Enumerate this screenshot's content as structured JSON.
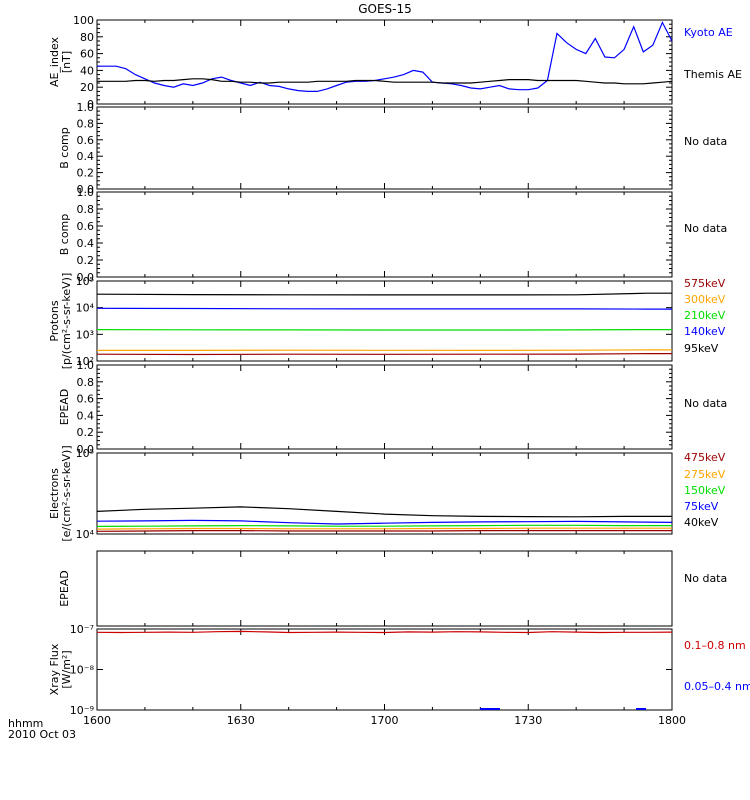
{
  "title": "GOES-15",
  "footer": {
    "time_label": "hhmm",
    "date_label": "2010 Oct 03",
    "x_ticks": [
      "1600",
      "1630",
      "1700",
      "1730",
      "1800"
    ]
  },
  "colors": {
    "black": "#000000",
    "blue": "#0000ff",
    "red": "#cc0000",
    "orange": "#ffa500",
    "green": "#00dd00",
    "darkred": "#990000"
  },
  "chart_data": [
    {
      "id": "ae",
      "type": "line",
      "ylabel": [
        "AE_index",
        "[nT]"
      ],
      "ylim": [
        0,
        100
      ],
      "yscale": "linear",
      "yticks": [
        "0",
        "20",
        "40",
        "60",
        "80",
        "100"
      ],
      "x_time": [
        0,
        2,
        4,
        6,
        8,
        10,
        12,
        14,
        16,
        18,
        20,
        22,
        24,
        26,
        28,
        30,
        32,
        34,
        36,
        38,
        40,
        42,
        44,
        46,
        48,
        50,
        52,
        54,
        56,
        58,
        60,
        62,
        64,
        66,
        68,
        70,
        72,
        74,
        76,
        78,
        80,
        82,
        84,
        86,
        88,
        90,
        92,
        94,
        96,
        98,
        100,
        102,
        104,
        106,
        108,
        110,
        112,
        114,
        116,
        118,
        120
      ],
      "series": [
        {
          "name": "Kyoto AE",
          "color": "#0000ff",
          "values": [
            45,
            45,
            45,
            42,
            35,
            30,
            25,
            22,
            20,
            24,
            22,
            25,
            30,
            32,
            28,
            25,
            22,
            26,
            22,
            21,
            18,
            16,
            15,
            15,
            18,
            22,
            26,
            27,
            27,
            28,
            30,
            32,
            35,
            40,
            38,
            26,
            25,
            24,
            22,
            19,
            18,
            20,
            22,
            18,
            17,
            17,
            19,
            28,
            84,
            73,
            65,
            60,
            78,
            56,
            55,
            65,
            92,
            62,
            70,
            97,
            75
          ]
        },
        {
          "name": "Themis AE",
          "color": "#000000",
          "values": [
            27,
            27,
            27,
            27,
            28,
            28,
            27,
            28,
            28,
            29,
            30,
            30,
            29,
            27,
            27,
            26,
            26,
            25,
            25,
            26,
            26,
            26,
            26,
            27,
            27,
            27,
            27,
            28,
            28,
            28,
            27,
            26,
            26,
            26,
            26,
            26,
            25,
            25,
            25,
            25,
            26,
            27,
            28,
            29,
            29,
            29,
            28,
            28,
            28,
            28,
            28,
            27,
            26,
            25,
            25,
            24,
            24,
            24,
            25,
            26,
            27
          ]
        }
      ],
      "legend": [
        {
          "text": "Kyoto AE",
          "color": "#0000ff"
        },
        {
          "text": "Themis AE",
          "color": "#000000"
        }
      ]
    },
    {
      "id": "b1",
      "type": "line",
      "ylabel": [
        "B comp"
      ],
      "ylim": [
        0,
        1
      ],
      "yscale": "linear",
      "yticks": [
        "0.0",
        "0.2",
        "0.4",
        "0.6",
        "0.8",
        "1.0"
      ],
      "series": [],
      "legend": [
        {
          "text": "No data",
          "color": "#000000"
        }
      ]
    },
    {
      "id": "b2",
      "type": "line",
      "ylabel": [
        "B comp"
      ],
      "ylim": [
        0,
        1
      ],
      "yscale": "linear",
      "yticks": [
        "0.0",
        "0.2",
        "0.4",
        "0.6",
        "0.8",
        "1.0"
      ],
      "series": [],
      "legend": [
        {
          "text": "No data",
          "color": "#000000"
        }
      ]
    },
    {
      "id": "protons",
      "type": "line",
      "ylabel": [
        "Protons",
        "[p/(cm²-s-sr-keV)]"
      ],
      "ylim": [
        100,
        100000
      ],
      "yscale": "log",
      "yticks": [
        "10²",
        "10³",
        "10⁴",
        "10⁵"
      ],
      "x_time": [
        0,
        20,
        40,
        60,
        80,
        100,
        115,
        120
      ],
      "series": [
        {
          "name": "575keV",
          "color": "#990000",
          "values": [
            180,
            175,
            180,
            178,
            180,
            182,
            190,
            190
          ]
        },
        {
          "name": "300keV",
          "color": "#ffa500",
          "values": [
            250,
            250,
            255,
            252,
            250,
            255,
            260,
            260
          ]
        },
        {
          "name": "210keV",
          "color": "#00dd00",
          "values": [
            1500,
            1480,
            1470,
            1450,
            1460,
            1470,
            1500,
            1500
          ]
        },
        {
          "name": "140keV",
          "color": "#0000ff",
          "values": [
            9500,
            9300,
            9100,
            9000,
            9000,
            9000,
            8800,
            8800
          ]
        },
        {
          "name": "95keV",
          "color": "#000000",
          "values": [
            32000,
            31000,
            30500,
            30000,
            30000,
            30500,
            35000,
            35000
          ]
        }
      ],
      "legend": [
        {
          "text": "575keV",
          "color": "#990000"
        },
        {
          "text": "300keV",
          "color": "#ffa500"
        },
        {
          "text": "210keV",
          "color": "#00dd00"
        },
        {
          "text": "140keV",
          "color": "#0000ff"
        },
        {
          "text": "95keV",
          "color": "#000000"
        }
      ]
    },
    {
      "id": "epead1",
      "type": "line",
      "ylabel": [
        "EPEAD"
      ],
      "ylim": [
        0,
        1
      ],
      "yscale": "linear",
      "yticks": [
        "0.0",
        "0.2",
        "0.4",
        "0.6",
        "0.8",
        "1.0"
      ],
      "series": [],
      "legend": [
        {
          "text": "No data",
          "color": "#000000"
        }
      ]
    },
    {
      "id": "electrons",
      "type": "line",
      "ylabel": [
        "Electrons",
        "[e/(cm²-s-sr-keV)]"
      ],
      "ylim": [
        10000,
        100000
      ],
      "yscale": "log",
      "yticks": [
        "10⁴",
        "10⁵"
      ],
      "x_time": [
        0,
        10,
        20,
        30,
        40,
        50,
        60,
        70,
        80,
        90,
        100,
        110,
        120
      ],
      "series": [
        {
          "name": "475keV",
          "color": "#990000",
          "values": [
            10800,
            10900,
            11000,
            11000,
            10900,
            10900,
            10900,
            10900,
            11000,
            11000,
            11000,
            11000,
            11000
          ]
        },
        {
          "name": "275keV",
          "color": "#ffa500",
          "values": [
            11500,
            11600,
            11700,
            11700,
            11600,
            11600,
            11600,
            11700,
            11700,
            11800,
            11800,
            11800,
            11800
          ]
        },
        {
          "name": "150keV",
          "color": "#00dd00",
          "values": [
            12400,
            12500,
            12600,
            12700,
            12600,
            12500,
            12500,
            12600,
            12700,
            12800,
            12800,
            12700,
            12700
          ]
        },
        {
          "name": "75keV",
          "color": "#0000ff",
          "values": [
            14400,
            14500,
            14700,
            14500,
            13800,
            13300,
            13600,
            13900,
            14100,
            14200,
            14300,
            14100,
            13900
          ]
        },
        {
          "name": "40keV",
          "color": "#000000",
          "values": [
            19000,
            20200,
            20800,
            21600,
            20500,
            19000,
            17600,
            16800,
            16500,
            16400,
            16300,
            16500,
            16500
          ]
        }
      ],
      "legend": [
        {
          "text": "475keV",
          "color": "#990000"
        },
        {
          "text": "275keV",
          "color": "#ffa500"
        },
        {
          "text": "150keV",
          "color": "#00dd00"
        },
        {
          "text": "75keV",
          "color": "#0000ff"
        },
        {
          "text": "40keV",
          "color": "#000000"
        }
      ]
    },
    {
      "id": "epead2",
      "type": "line",
      "ylabel": [
        "EPEAD"
      ],
      "ylim": [
        0,
        1
      ],
      "yscale": "linear",
      "yticks": [],
      "series": [],
      "legend": [
        {
          "text": "No data",
          "color": "#000000"
        }
      ]
    },
    {
      "id": "xray",
      "type": "line",
      "ylabel": [
        "Xray Flux",
        "[W/m²]"
      ],
      "ylim": [
        1e-09,
        1e-07
      ],
      "yscale": "log",
      "yticks": [
        "10⁻⁹",
        "10⁻⁸",
        "10⁻⁷"
      ],
      "x_time": [
        0,
        5,
        10,
        15,
        20,
        25,
        30,
        35,
        40,
        45,
        50,
        55,
        60,
        65,
        70,
        75,
        80,
        85,
        90,
        95,
        100,
        105,
        110,
        115,
        120
      ],
      "series": [
        {
          "name": "0.1-0.8 nm",
          "color": "#cc0000",
          "values": [
            8.3e-08,
            8.2e-08,
            8.3e-08,
            8.4e-08,
            8.3e-08,
            8.6e-08,
            8.7e-08,
            8.5e-08,
            8.2e-08,
            8.3e-08,
            8.4e-08,
            8.3e-08,
            8.2e-08,
            8.5e-08,
            8.4e-08,
            8.6e-08,
            8.5e-08,
            8.3e-08,
            8.2e-08,
            8.6e-08,
            8.4e-08,
            8.2e-08,
            8.3e-08,
            8.3e-08,
            8.4e-08
          ]
        },
        {
          "name": "0.05-0.4 nm",
          "color": "#0000ff",
          "values": [
            null,
            null,
            null,
            null,
            null,
            null,
            null,
            null,
            null,
            null,
            null,
            null,
            null,
            null,
            null,
            null,
            null,
            null,
            null,
            null,
            null,
            null,
            null,
            null,
            null
          ]
        }
      ],
      "legend": [
        {
          "text": "0.1–0.8 nm",
          "color": "#cc0000"
        },
        {
          "text": "0.05–0.4 nm",
          "color": "#0000ff"
        }
      ]
    }
  ]
}
